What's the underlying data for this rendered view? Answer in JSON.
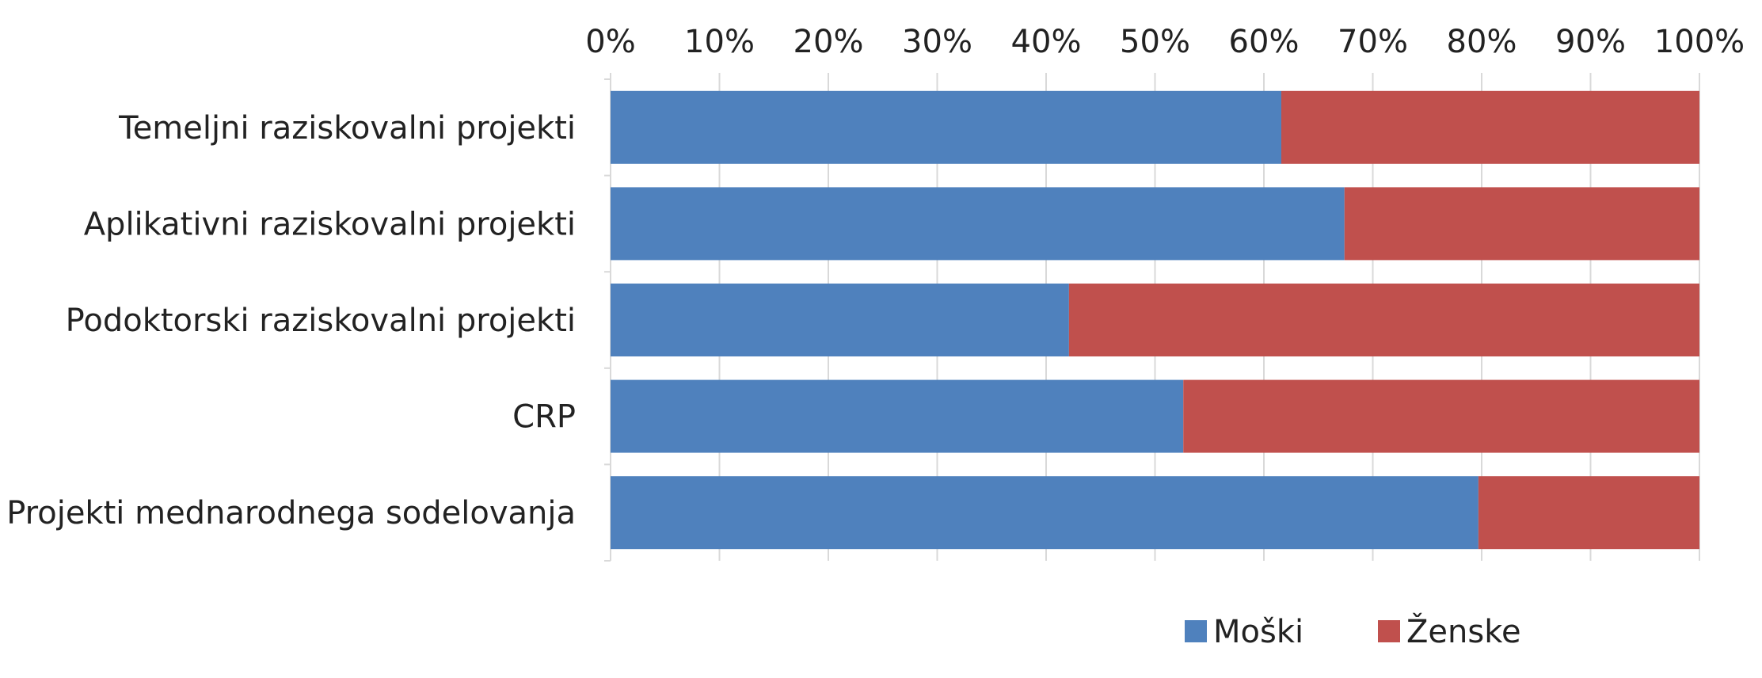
{
  "chart_data": {
    "type": "bar",
    "orientation": "horizontal",
    "stacked": "percent",
    "categories": [
      "Temeljni raziskovalni projekti",
      "Aplikativni raziskovalni projekti",
      "Podoktorski raziskovalni projekti",
      "CRP",
      "Projekti mednarodnega sodelovanja"
    ],
    "series": [
      {
        "name": "Moški",
        "color": "#4f81bd",
        "values": [
          61.6,
          67.4,
          42.1,
          52.6,
          79.7
        ]
      },
      {
        "name": "Ženske",
        "color": "#c0504d",
        "values": [
          38.4,
          32.6,
          57.9,
          47.4,
          20.3
        ]
      }
    ],
    "x_ticks": [
      "0%",
      "10%",
      "20%",
      "30%",
      "40%",
      "50%",
      "60%",
      "70%",
      "80%",
      "90%",
      "100%"
    ],
    "xlim": [
      0,
      100
    ],
    "x_axis_position": "top",
    "grid": true,
    "legend": "bottom"
  }
}
